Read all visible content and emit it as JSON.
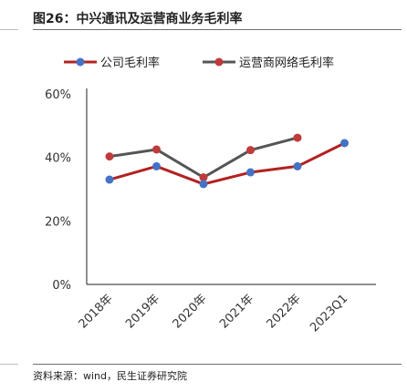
{
  "header": {
    "title": "图26：中兴通讯及运营商业务毛利率"
  },
  "footer": {
    "source": "资料来源：wind，民生证券研究院"
  },
  "colors": {
    "series_1": "#4472c4",
    "series_1_line": "#b22222",
    "series_2": "#bf3b3b",
    "series_2_line": "#555555",
    "axis": "#222222",
    "rule": "#6f6f6f"
  },
  "chart_data": {
    "type": "line",
    "title": "",
    "xlabel": "",
    "ylabel": "",
    "categories": [
      "2018年",
      "2019年",
      "2020年",
      "2021年",
      "2022年",
      "2023Q1"
    ],
    "ylim": [
      0,
      60
    ],
    "yticks": [
      "0%",
      "20%",
      "40%",
      "60%"
    ],
    "ytick_values": [
      0,
      20,
      40,
      60
    ],
    "grid": false,
    "legend_position": "top",
    "series": [
      {
        "name": "公司毛利率",
        "values": [
          33.0,
          37.2,
          31.6,
          35.3,
          37.2,
          44.5
        ]
      },
      {
        "name": "运营商网络毛利率",
        "values": [
          40.3,
          42.5,
          33.7,
          42.3,
          46.2,
          null
        ]
      }
    ]
  }
}
